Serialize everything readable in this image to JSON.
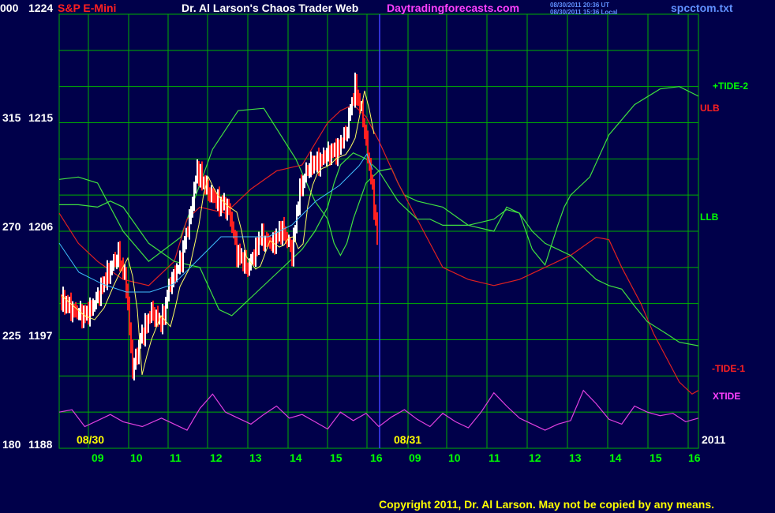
{
  "header": {
    "symbol": "S&P E-Mini",
    "title": "Dr. Al Larson's Chaos Trader Web",
    "site": "Daytradingforecasts.com",
    "time_ut": "08/30/2011 20:36 UT",
    "time_local": "08/30/2011 15:36 Local",
    "filename": "spcctom.txt"
  },
  "footer": {
    "copyright": "Copyright 2011, Dr. Al Larson. May not be copied by any means."
  },
  "colors": {
    "background": "#00004a",
    "grid": "#00b000",
    "price_up": "#ffffff",
    "price_down": "#ff2020",
    "moving_average": "#ffff60",
    "forecast_green": "#40e040",
    "forecast_red": "#e02020",
    "xtide": "#e040e0",
    "cyan_line": "#40c0ff",
    "divider": "#4040ff"
  },
  "chart_data": {
    "type": "line",
    "x_axis": {
      "date_labels": [
        "08/30",
        "08/31"
      ],
      "year_label": "2011",
      "hour_labels": [
        "09",
        "10",
        "11",
        "12",
        "13",
        "14",
        "15",
        "16",
        "09",
        "10",
        "11",
        "12",
        "13",
        "14",
        "15",
        "16"
      ]
    },
    "y_axis": {
      "ylim": [
        1188,
        1224
      ],
      "tick_prices": [
        "1224",
        "1215",
        "1206",
        "1197",
        "1188"
      ],
      "tick_counters": [
        "000",
        "315",
        "270",
        "225",
        "180"
      ]
    },
    "legend": {
      "tide2": "+TIDE-2",
      "ulb": "ULB",
      "llb": "LLB",
      "tide1": "-TIDE-1",
      "xtide": "XTIDE"
    },
    "grid": true,
    "series": [
      {
        "name": "+TIDE-2",
        "x": [
          0,
          3,
          6,
          10,
          14,
          19,
          24,
          28,
          32,
          37,
          40,
          42,
          43,
          44,
          45,
          46,
          47,
          48,
          50,
          52,
          53,
          54,
          56,
          60,
          64,
          68,
          70,
          72,
          74,
          76,
          78,
          79,
          80,
          83,
          86,
          90,
          94,
          97,
          100
        ],
        "y": [
          1210.3,
          1210.5,
          1210.0,
          1206.0,
          1203.5,
          1205.5,
          1212.8,
          1216.0,
          1216.2,
          1212.0,
          1208.5,
          1207.0,
          1205.0,
          1204.0,
          1205.0,
          1207.0,
          1208.5,
          1210.0,
          1211.0,
          1211.2,
          1210.0,
          1209.0,
          1208.5,
          1208.0,
          1206.5,
          1206.0,
          1208.0,
          1207.5,
          1204.5,
          1203.2,
          1206.5,
          1208.0,
          1209.0,
          1210.5,
          1214.0,
          1216.5,
          1217.8,
          1218.0,
          1217.2
        ]
      },
      {
        "name": "ULB",
        "x": [
          0,
          3,
          6,
          10,
          14,
          18,
          20,
          22,
          26,
          30,
          34,
          38,
          42,
          44,
          46,
          48,
          50,
          53,
          55,
          57,
          60,
          64,
          68,
          72,
          76,
          80,
          84,
          86,
          88,
          91,
          93,
          95,
          97,
          99,
          100
        ],
        "y": [
          1207.5,
          1205.0,
          1203.5,
          1202.0,
          1201.5,
          1203.5,
          1207.0,
          1208.0,
          1207.5,
          1209.5,
          1211.0,
          1211.5,
          1215.0,
          1216.0,
          1216.5,
          1215.5,
          1213.5,
          1210.0,
          1208.0,
          1206.0,
          1203.0,
          1202.0,
          1201.5,
          1202.0,
          1203.0,
          1204.0,
          1205.5,
          1205.3,
          1203.0,
          1200.0,
          1197.5,
          1195.5,
          1193.5,
          1192.5,
          1192.8
        ]
      },
      {
        "name": "LLB",
        "x": [
          0,
          3,
          6,
          8,
          10,
          14,
          18,
          22,
          25,
          27,
          28,
          30,
          34,
          38,
          40,
          42,
          43,
          44,
          46,
          48,
          50,
          53,
          56,
          58,
          60,
          64,
          68,
          70,
          72,
          74,
          76,
          78,
          80,
          84,
          86,
          88,
          90,
          92,
          95,
          97,
          100
        ],
        "y": [
          1208.2,
          1208.2,
          1208.0,
          1208.5,
          1208.0,
          1205.0,
          1203.5,
          1203.0,
          1199.5,
          1199.0,
          1199.5,
          1200.5,
          1202.5,
          1204.5,
          1206.0,
          1208.0,
          1210.0,
          1211.5,
          1212.5,
          1212.0,
          1211.0,
          1208.5,
          1207.0,
          1207.0,
          1206.5,
          1206.5,
          1207.0,
          1207.8,
          1207.5,
          1206.0,
          1205.0,
          1204.5,
          1204.0,
          1202.0,
          1201.5,
          1201.2,
          1199.8,
          1198.5,
          1197.5,
          1196.8,
          1196.5
        ]
      },
      {
        "name": "-TIDE-1",
        "x": [
          0,
          2,
          4,
          6,
          8,
          10,
          13,
          16,
          18,
          20,
          22,
          24,
          26,
          28,
          30,
          32,
          34,
          36,
          38,
          40,
          42,
          44,
          46,
          48,
          50,
          52,
          54,
          56,
          58,
          60,
          62,
          64,
          66,
          68,
          70,
          72,
          74,
          76,
          78,
          80,
          82,
          84,
          86,
          88,
          90,
          92,
          94,
          96,
          98,
          100
        ],
        "y": [
          1191.0,
          1191.2,
          1189.8,
          1190.3,
          1190.8,
          1190.2,
          1189.8,
          1190.5,
          1190.0,
          1189.5,
          1191.3,
          1192.5,
          1191.0,
          1190.5,
          1190.0,
          1190.8,
          1191.5,
          1190.5,
          1190.8,
          1190.2,
          1189.6,
          1191.0,
          1190.3,
          1190.9,
          1189.8,
          1190.6,
          1191.2,
          1190.4,
          1189.8,
          1190.9,
          1190.2,
          1189.7,
          1191.0,
          1192.6,
          1191.5,
          1190.5,
          1190.0,
          1189.5,
          1190.0,
          1190.3,
          1192.8,
          1191.7,
          1190.4,
          1190.0,
          1191.5,
          1191.0,
          1190.7,
          1190.9,
          1190.2,
          1190.5
        ]
      }
    ]
  }
}
